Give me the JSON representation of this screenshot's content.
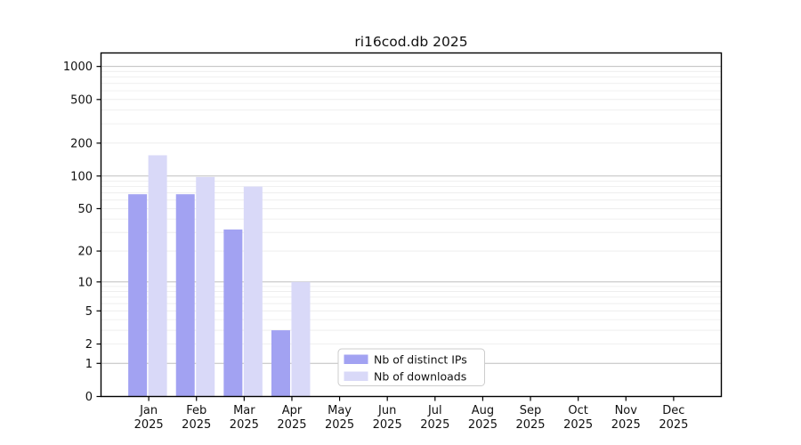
{
  "page": {
    "background": "#ffffff"
  },
  "chart_data": {
    "type": "bar",
    "title": "ri16cod.db 2025",
    "categories": [
      "Jan",
      "Feb",
      "Mar",
      "Apr",
      "May",
      "Jun",
      "Jul",
      "Aug",
      "Sep",
      "Oct",
      "Nov",
      "Dec"
    ],
    "x_tick_second_line": "2025",
    "series": [
      {
        "name": "Nb of distinct IPs",
        "color": "#a2a2f2",
        "values": [
          68,
          68,
          32,
          3,
          0,
          0,
          0,
          0,
          0,
          0,
          0,
          0
        ]
      },
      {
        "name": "Nb of downloads",
        "color": "#d9d9f8",
        "values": [
          155,
          98,
          80,
          10,
          0,
          0,
          0,
          0,
          0,
          0,
          0,
          0
        ]
      }
    ],
    "y_axis": {
      "scale": "log10(value+1)",
      "tick_values": [
        1000,
        500,
        200,
        100,
        50,
        20,
        10,
        5,
        2,
        1,
        0
      ],
      "range": [
        0,
        1330
      ]
    },
    "x_axis": {
      "year": "2025",
      "months_shown": 12
    },
    "grid": {
      "horizontal_only": true,
      "major_lines_at": [
        1,
        10,
        100,
        1000
      ],
      "major_color": "#bfbfbf",
      "minor_color": "#ebebeb"
    },
    "legend": {
      "entries": [
        "Nb of distinct IPs",
        "Nb of downloads"
      ],
      "position": "bottom-center-inside",
      "background": "#ffffff",
      "border_color": "#cccccc"
    },
    "colors": {
      "axis": "#000000",
      "text": "#111111",
      "background": "#ffffff"
    }
  }
}
